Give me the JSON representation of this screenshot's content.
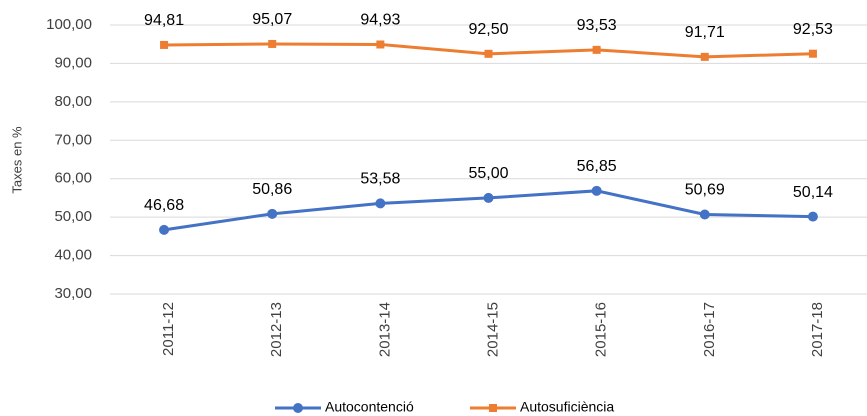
{
  "chart_data": {
    "type": "line",
    "y_label": "Taxes en %",
    "categories": [
      "2011-12",
      "2012-13",
      "2013-14",
      "2014-15",
      "2015-16",
      "2016-17",
      "2017-18"
    ],
    "series": [
      {
        "name": "Autocontenció",
        "color": "#4472c4",
        "marker": "circle",
        "values": [
          46.68,
          50.86,
          53.58,
          55.0,
          56.85,
          50.69,
          50.14
        ],
        "value_labels": [
          "46,68",
          "50,86",
          "53,58",
          "55,00",
          "56,85",
          "50,69",
          "50,14"
        ]
      },
      {
        "name": "Autosuficiència",
        "color": "#ed7d31",
        "marker": "square",
        "values": [
          94.81,
          95.07,
          94.93,
          92.5,
          93.53,
          91.71,
          92.53
        ],
        "value_labels": [
          "94,81",
          "95,07",
          "94,93",
          "92,50",
          "93,53",
          "91,71",
          "92,53"
        ]
      }
    ],
    "ylim": [
      30,
      100
    ],
    "yticks": [
      {
        "value": 30,
        "label": "30,00"
      },
      {
        "value": 40,
        "label": "40,00"
      },
      {
        "value": 50,
        "label": "50,00"
      },
      {
        "value": 60,
        "label": "60,00"
      },
      {
        "value": 70,
        "label": "70,00"
      },
      {
        "value": 80,
        "label": "80,00"
      },
      {
        "value": 90,
        "label": "90,00"
      },
      {
        "value": 100,
        "label": "100,00"
      }
    ],
    "grid": true,
    "legend": "bottom"
  }
}
